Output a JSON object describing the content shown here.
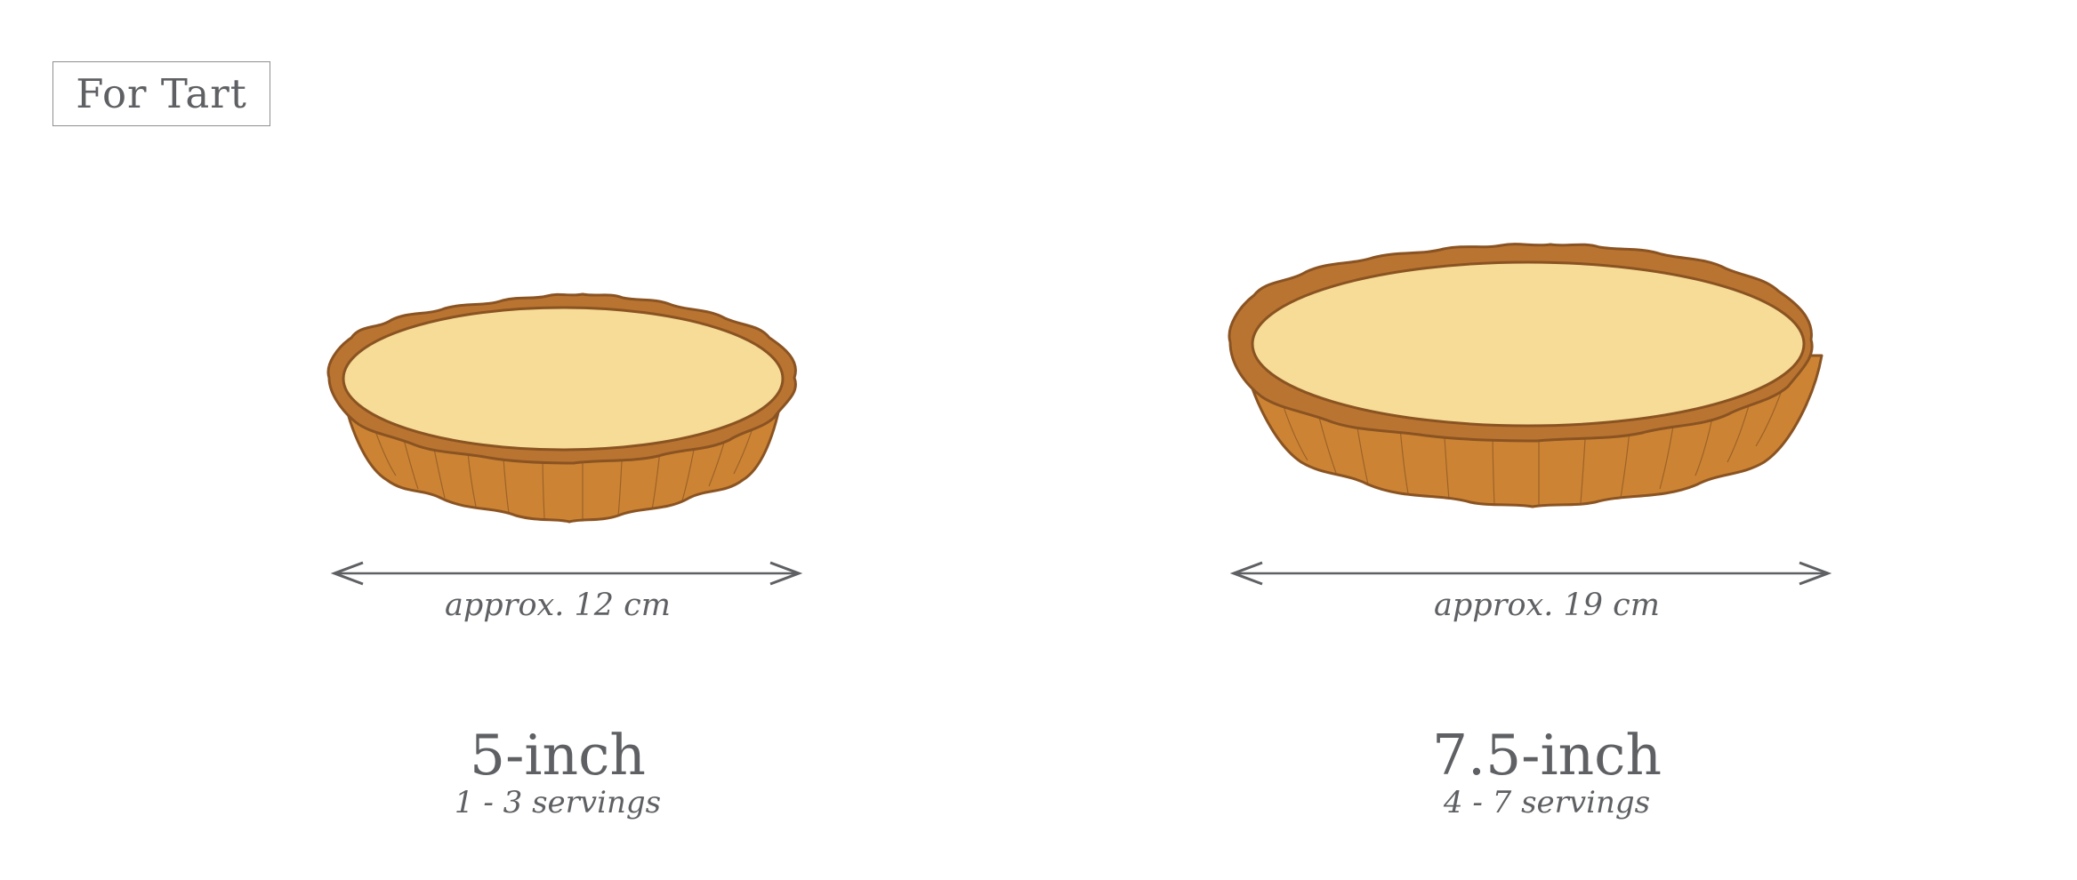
{
  "category_label": "For Tart",
  "colors": {
    "text": "#5e6063",
    "crust": "#cc8434",
    "crust_rim": "#b97431",
    "crust_outline": "#8a5322",
    "filling": "#f6dc97",
    "arrow": "#5e6063"
  },
  "tarts": [
    {
      "icon": "tart-icon",
      "approx": "approx. 12 cm",
      "size": "5-inch",
      "servings": "1 - 3 servings"
    },
    {
      "icon": "tart-icon",
      "approx": "approx. 19 cm",
      "size": "7.5-inch",
      "servings": "4 - 7 servings"
    }
  ]
}
